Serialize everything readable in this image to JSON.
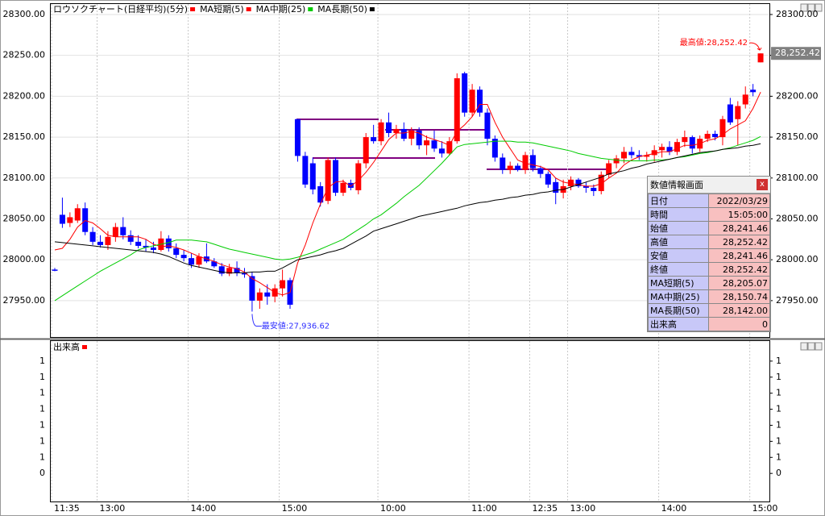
{
  "chart_data": [
    {
      "type": "candlestick",
      "name": "ロウソクチャート(日経平均)(5分)",
      "color": "#ff0000",
      "up_color": "#ff0000",
      "down_color": "#0000ff",
      "categories": [
        "11:35",
        null,
        null,
        null,
        null,
        null,
        "13:00",
        null,
        null,
        null,
        null,
        null,
        null,
        null,
        null,
        null,
        null,
        null,
        "14:00",
        null,
        null,
        null,
        null,
        null,
        null,
        null,
        null,
        null,
        null,
        null,
        "15:00",
        null,
        null,
        null,
        null,
        null,
        null,
        null,
        null,
        null,
        null,
        null,
        null,
        "10:00",
        null,
        null,
        null,
        null,
        null,
        null,
        null,
        null,
        null,
        null,
        null,
        "11:00",
        null,
        null,
        null,
        null,
        null,
        null,
        null,
        "12:35",
        null,
        null,
        null,
        null,
        "13:00",
        null,
        null,
        null,
        null,
        null,
        null,
        null,
        null,
        null,
        null,
        null,
        "14:00",
        null,
        null,
        null,
        null,
        null,
        null,
        null,
        null,
        null,
        null,
        null,
        "15:00",
        null
      ],
      "open": [
        27988,
        28055,
        28045,
        28048,
        28063,
        28034,
        28022,
        28018,
        28028,
        28040,
        28030,
        28022,
        28017,
        28015,
        28012,
        28026,
        28014,
        28006,
        28002,
        27994,
        28004,
        27998,
        27992,
        27983,
        27990,
        27984,
        27980,
        27950,
        27960,
        27955,
        27965,
        27975,
        28172,
        28127,
        28118,
        28090,
        28072,
        28122,
        28082,
        28094,
        28085,
        28118,
        28150,
        28145,
        28168,
        28155,
        28160,
        28148,
        28158,
        28140,
        28146,
        28136,
        28130,
        28145,
        28228,
        28180,
        28208,
        28180,
        28148,
        28125,
        28110,
        28115,
        28110,
        28128,
        28112,
        28105,
        28095,
        28082,
        28090,
        28098,
        28090,
        28088,
        28084,
        28104,
        28118,
        28124,
        28132,
        28128,
        28126,
        28128,
        28134,
        28138,
        28132,
        28144,
        28150,
        28136,
        28148,
        28154,
        28150,
        28190,
        28172,
        28190,
        28208,
        28241.46
      ],
      "high": [
        27990,
        28076,
        28058,
        28068,
        28070,
        28040,
        28030,
        28035,
        28045,
        28052,
        28036,
        28030,
        28025,
        28022,
        28035,
        28030,
        28020,
        28012,
        28008,
        28008,
        28020,
        28002,
        27996,
        27995,
        27998,
        27990,
        27985,
        27965,
        27970,
        27970,
        27988,
        27978,
        28172,
        28132,
        28125,
        28095,
        28125,
        28125,
        28098,
        28098,
        28122,
        28155,
        28165,
        28172,
        28180,
        28165,
        28168,
        28162,
        28162,
        28152,
        28158,
        28145,
        28150,
        28228,
        28230,
        28215,
        28212,
        28185,
        28152,
        28130,
        28120,
        28118,
        28132,
        28135,
        28115,
        28108,
        28100,
        28098,
        28102,
        28100,
        28095,
        28092,
        28108,
        28122,
        28128,
        28138,
        28138,
        28134,
        28132,
        28140,
        28142,
        28145,
        28148,
        28158,
        28152,
        28152,
        28158,
        28158,
        28176,
        28198,
        28194,
        28212,
        28215,
        28252.42
      ],
      "low": [
        27986,
        28039,
        28040,
        28045,
        28030,
        28018,
        28015,
        28012,
        28022,
        28025,
        28018,
        28014,
        28010,
        28008,
        28010,
        28010,
        28002,
        27998,
        27990,
        27990,
        27996,
        27990,
        27980,
        27980,
        27980,
        27978,
        27936.62,
        27940,
        27945,
        27948,
        27955,
        27940,
        28120,
        28088,
        28080,
        28065,
        28068,
        28078,
        28078,
        28085,
        28080,
        28112,
        28142,
        28140,
        28150,
        28148,
        28145,
        28140,
        28135,
        28128,
        28132,
        28125,
        28128,
        28142,
        28175,
        28175,
        28175,
        28140,
        28120,
        28105,
        28105,
        28108,
        28105,
        28108,
        28100,
        28088,
        28068,
        28075,
        28085,
        28088,
        28082,
        28078,
        28080,
        28100,
        28112,
        28118,
        28124,
        28122,
        28120,
        28120,
        28125,
        28128,
        28128,
        28138,
        28130,
        28132,
        28144,
        28146,
        28140,
        28165,
        28140,
        28185,
        28200,
        28241.46
      ],
      "close": [
        27987,
        28044,
        28052,
        28063,
        28034,
        28022,
        28018,
        28028,
        28040,
        28030,
        28022,
        28017,
        28015,
        28012,
        28026,
        28014,
        28006,
        28002,
        27994,
        28004,
        27998,
        27992,
        27983,
        27990,
        27984,
        27982,
        27950,
        27960,
        27955,
        27965,
        27975,
        27945,
        28127,
        28092,
        28086,
        28070,
        28122,
        28082,
        28094,
        28088,
        28118,
        28150,
        28145,
        28168,
        28155,
        28160,
        28148,
        28158,
        28140,
        28146,
        28136,
        28130,
        28145,
        28222,
        28180,
        28208,
        28180,
        28148,
        28125,
        28110,
        28115,
        28110,
        28128,
        28112,
        28105,
        28092,
        28082,
        28090,
        28098,
        28090,
        28088,
        28084,
        28104,
        28118,
        28124,
        28132,
        28128,
        28126,
        28128,
        28134,
        28138,
        28132,
        28144,
        28150,
        28136,
        28148,
        28154,
        28150,
        28172,
        28168,
        28188,
        28202,
        28205,
        28252.42
      ],
      "series": [
        {
          "name": "MA短期(5)",
          "color": "#ff0000",
          "values": [
            28012,
            28014,
            28025,
            28040,
            28048,
            28045,
            28038,
            28030,
            28028,
            28028,
            28028,
            28028,
            28025,
            28019,
            28016,
            28017,
            28015,
            28012,
            28008,
            28004,
            28001,
            27998,
            27994,
            27991,
            27989,
            27985,
            27977,
            27972,
            27966,
            27960,
            27957,
            27960,
            27996,
            28018,
            28045,
            28068,
            28088,
            28095,
            28096,
            28090,
            28097,
            28107,
            28119,
            28133,
            28147,
            28155,
            28155,
            28157,
            28155,
            28150,
            28147,
            28144,
            28140,
            28157,
            28165,
            28175,
            28190,
            28190,
            28168,
            28150,
            28136,
            28122,
            28118,
            28116,
            28114,
            28110,
            28100,
            28095,
            28093,
            28092,
            28090,
            28090,
            28093,
            28100,
            28106,
            28116,
            28122,
            28126,
            28128,
            28130,
            28132,
            28132,
            28136,
            28140,
            28140,
            28142,
            28146,
            28148,
            28153,
            28160,
            28165,
            28170,
            28185,
            28205.07
          ]
        },
        {
          "name": "MA中期(25)",
          "color": "#00cc00",
          "values": [
            27950,
            27956,
            27962,
            27968,
            27974,
            27980,
            27986,
            27991,
            27996,
            28001,
            28006,
            28012,
            28015,
            28017,
            28019,
            28021,
            28024,
            28024,
            28024,
            28023,
            28022,
            28019,
            28016,
            28013,
            28011,
            28009,
            28007,
            28005,
            28003,
            28001,
            28000,
            28001,
            28003,
            28006,
            28009,
            28013,
            28017,
            28021,
            28025,
            28031,
            28037,
            28043,
            28050,
            28055,
            28062,
            28069,
            28077,
            28084,
            28091,
            28100,
            28109,
            28118,
            28128,
            28138,
            28141,
            28142,
            28143,
            28144,
            28145,
            28145,
            28145,
            28144,
            28144,
            28143,
            28141,
            28139,
            28137,
            28135,
            28133,
            28130,
            28128,
            28126,
            28124,
            28123,
            28122,
            28121,
            28121,
            28121,
            28121,
            28122,
            28122,
            28123,
            28125,
            28126,
            28128,
            28130,
            28131,
            28133,
            28135,
            28137,
            28140,
            28143,
            28146,
            28150.74
          ]
        },
        {
          "name": "MA長期(50)",
          "color": "#000000",
          "values": [
            28022,
            28021,
            28020,
            28019,
            28018,
            28017,
            28016,
            28015,
            28014,
            28013,
            28012,
            28011,
            28010,
            28009,
            28007,
            28004,
            28000,
            27996,
            27993,
            27991,
            27989,
            27987,
            27985,
            27984,
            27984,
            27984,
            27985,
            27985,
            27986,
            27986,
            27990,
            27995,
            28000,
            28002,
            28004,
            28006,
            28009,
            28011,
            28014,
            28019,
            28024,
            28029,
            28035,
            28038,
            28041,
            28044,
            28047,
            28050,
            28053,
            28055,
            28057,
            28059,
            28061,
            28063,
            28066,
            28068,
            28070,
            28071,
            28073,
            28074,
            28076,
            28077,
            28079,
            28080,
            28082,
            28083,
            28085,
            28086,
            28089,
            28092,
            28095,
            28098,
            28101,
            28105,
            28107,
            28109,
            28112,
            28114,
            28117,
            28119,
            28121,
            28123,
            28125,
            28127,
            28129,
            28131,
            28132,
            28133,
            28135,
            28136,
            28137,
            28139,
            28140,
            28142
          ]
        }
      ],
      "ylim": [
        27905.5,
        28312.8
      ],
      "yticks": [
        {
          "value": 28300,
          "label": "28300.00"
        },
        {
          "value": 28250,
          "label": "28250.00"
        },
        {
          "value": 28200,
          "label": "28200.00"
        },
        {
          "value": 28150,
          "label": "28150.00"
        },
        {
          "value": 28100,
          "label": "28100.00"
        },
        {
          "value": 28050,
          "label": "28050.00"
        },
        {
          "value": 28000,
          "label": "28000.00"
        },
        {
          "value": 27950,
          "label": "27950.00"
        }
      ],
      "grid": true,
      "max_label": "最高値:28,252.42",
      "min_label": "最安値:27,936.62",
      "last_price_label": "28,252.42"
    },
    {
      "type": "bar",
      "name": "出来高",
      "color": "#ff0000",
      "ylim": [
        0.0875,
        1.5875
      ],
      "yticks": [
        {
          "value": 1.4,
          "label": "1"
        },
        {
          "value": 1.25,
          "label": "1"
        },
        {
          "value": 1.1,
          "label": "1"
        },
        {
          "value": 0.95,
          "label": "1"
        },
        {
          "value": 0.8,
          "label": "1"
        },
        {
          "value": 0.65,
          "label": "1"
        },
        {
          "value": 0.5,
          "label": "1"
        },
        {
          "value": 0.35,
          "label": "0"
        }
      ]
    }
  ],
  "info_panel": {
    "title": "数値情報画面",
    "close": "x",
    "rows": [
      [
        "日付",
        "2022/03/29"
      ],
      [
        "時間",
        "15:05:00"
      ],
      [
        "始値",
        "28,241.46"
      ],
      [
        "高値",
        "28,252.42"
      ],
      [
        "安値",
        "28,241.46"
      ],
      [
        "終値",
        "28,252.42"
      ],
      [
        "MA短期(5)",
        "28,205.07"
      ],
      [
        "MA中期(25)",
        "28,150.74"
      ],
      [
        "MA長期(50)",
        "28,142.00"
      ],
      [
        "出来高",
        "0"
      ]
    ]
  }
}
